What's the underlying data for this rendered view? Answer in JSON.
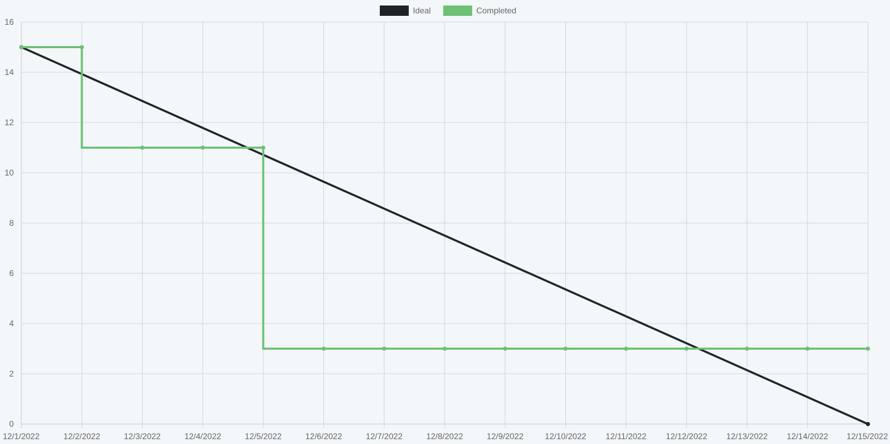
{
  "chart_data": {
    "type": "line",
    "title": "",
    "xlabel": "",
    "ylabel": "",
    "categories": [
      "12/1/2022",
      "12/2/2022",
      "12/3/2022",
      "12/4/2022",
      "12/5/2022",
      "12/6/2022",
      "12/7/2022",
      "12/8/2022",
      "12/9/2022",
      "12/10/2022",
      "12/11/2022",
      "12/12/2022",
      "12/13/2022",
      "12/14/2022",
      "12/15/2022"
    ],
    "ylim": [
      0,
      16
    ],
    "yticks": [
      0,
      2,
      4,
      6,
      8,
      10,
      12,
      14,
      16
    ],
    "grid": true,
    "legend": "top-center",
    "series": [
      {
        "name": "Ideal",
        "color": "#1f2226",
        "stepped": false,
        "points": [
          {
            "x": "12/1/2022",
            "y": 15
          },
          {
            "x": "12/15/2022",
            "y": 0
          }
        ]
      },
      {
        "name": "Completed",
        "color": "#6cc173",
        "stepped": true,
        "points": [
          {
            "x": "12/1/2022",
            "y": 15
          },
          {
            "x": "12/2/2022",
            "y": 15
          },
          {
            "x": "12/3/2022",
            "y": 11
          },
          {
            "x": "12/4/2022",
            "y": 11
          },
          {
            "x": "12/5/2022",
            "y": 11
          },
          {
            "x": "12/6/2022",
            "y": 3
          },
          {
            "x": "12/7/2022",
            "y": 3
          },
          {
            "x": "12/8/2022",
            "y": 3
          },
          {
            "x": "12/9/2022",
            "y": 3
          },
          {
            "x": "12/10/2022",
            "y": 3
          },
          {
            "x": "12/11/2022",
            "y": 3
          },
          {
            "x": "12/12/2022",
            "y": 3
          },
          {
            "x": "12/13/2022",
            "y": 3
          },
          {
            "x": "12/14/2022",
            "y": 3
          },
          {
            "x": "12/15/2022",
            "y": 3
          }
        ]
      }
    ]
  }
}
